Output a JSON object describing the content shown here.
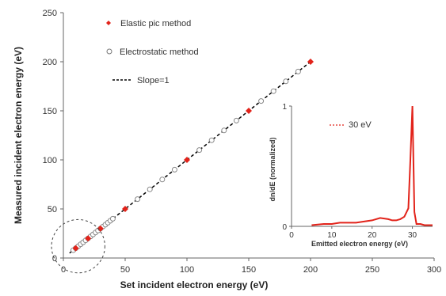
{
  "chart_data": [
    {
      "type": "scatter",
      "title": "",
      "xlabel": "Set incident electron energy (eV)",
      "ylabel": "Measured incident electron energy (eV)",
      "xlim": [
        0,
        300
      ],
      "ylim": [
        0,
        250
      ],
      "xticks": [
        "0",
        "50",
        "100",
        "150",
        "200",
        "250",
        "300"
      ],
      "yticks": [
        "0",
        "50",
        "100",
        "150",
        "200",
        "250"
      ],
      "grid": false,
      "legend_position": "top-left",
      "series": [
        {
          "name": "Elastic pic method",
          "marker": "filled-diamond",
          "color": "#e2231a",
          "points": [
            [
              10,
              10
            ],
            [
              20,
              20
            ],
            [
              30,
              30
            ],
            [
              50,
              50
            ],
            [
              100,
              100
            ],
            [
              150,
              150
            ],
            [
              200,
              200
            ]
          ]
        },
        {
          "name": "Electrostatic method",
          "marker": "open-circle",
          "color": "#888888",
          "points": [
            [
              8,
              8
            ],
            [
              10,
              10
            ],
            [
              12,
              12
            ],
            [
              14,
              14
            ],
            [
              16,
              16
            ],
            [
              18,
              18
            ],
            [
              20,
              20
            ],
            [
              22,
              22
            ],
            [
              24,
              24
            ],
            [
              26,
              26
            ],
            [
              28,
              28
            ],
            [
              30,
              30
            ],
            [
              32,
              32
            ],
            [
              34,
              34
            ],
            [
              36,
              36
            ],
            [
              38,
              38
            ],
            [
              40,
              40
            ],
            [
              60,
              60
            ],
            [
              70,
              70
            ],
            [
              80,
              80
            ],
            [
              90,
              90
            ],
            [
              110,
              110
            ],
            [
              120,
              120
            ],
            [
              130,
              130
            ],
            [
              140,
              140
            ],
            [
              160,
              160
            ],
            [
              170,
              170
            ],
            [
              180,
              180
            ],
            [
              190,
              190
            ]
          ]
        },
        {
          "name": "Slope=1",
          "style": "dashed-line",
          "color": "#000000",
          "points": [
            [
              5,
              5
            ],
            [
              200,
              200
            ]
          ]
        }
      ],
      "annotations": [
        {
          "type": "dashed-circle",
          "center": [
            12,
            12
          ],
          "radius_data": 12
        }
      ]
    },
    {
      "type": "line",
      "title": "",
      "xlabel": "Emitted electron energy (eV)",
      "ylabel": "dn/dE (normalized)",
      "xlim": [
        0,
        35
      ],
      "ylim": [
        0,
        1
      ],
      "xticks": [
        "0",
        "10",
        "20",
        "30"
      ],
      "yticks": [
        "0",
        "1"
      ],
      "legend_position": "top-left",
      "series": [
        {
          "name": "30 eV",
          "color": "#e2231a",
          "x": [
            5,
            8,
            10,
            12,
            14,
            16,
            18,
            20,
            22,
            24,
            25,
            26,
            27,
            28,
            29,
            29.5,
            30,
            30.5,
            31,
            32,
            33,
            35
          ],
          "y": [
            0.01,
            0.02,
            0.02,
            0.03,
            0.03,
            0.03,
            0.04,
            0.05,
            0.07,
            0.06,
            0.05,
            0.05,
            0.06,
            0.08,
            0.15,
            0.55,
            1.0,
            0.12,
            0.02,
            0.02,
            0.01,
            0.01
          ]
        }
      ]
    }
  ]
}
